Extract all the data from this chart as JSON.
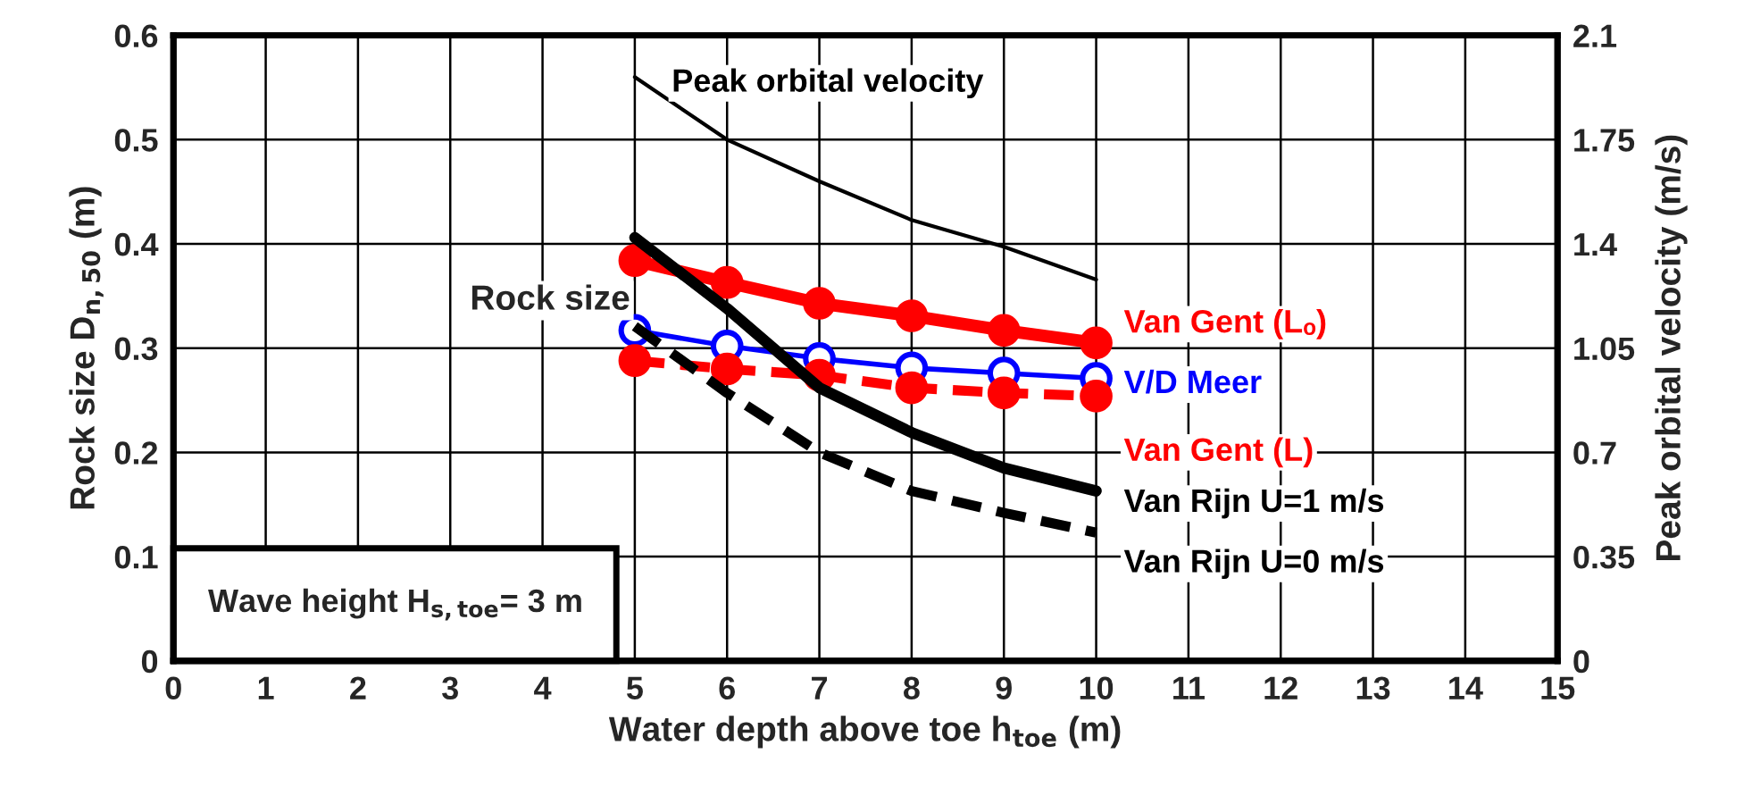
{
  "chart_data": {
    "type": "line",
    "xlabel": "Water depth above toe h$_{toe}$ (m)",
    "ylabel": "Rock size D$_{n,50}$ (m)",
    "y2label": "Peak orbital velocity (m/s)",
    "xlim": [
      0,
      15
    ],
    "xticks": [
      0,
      1,
      2,
      3,
      4,
      5,
      6,
      7,
      8,
      9,
      10,
      11,
      12,
      13,
      14,
      15
    ],
    "ylim": [
      0,
      0.6
    ],
    "yticks": [
      0,
      0.1,
      0.2,
      0.3,
      0.4,
      0.5,
      0.6
    ],
    "y2lim": [
      0,
      2.1
    ],
    "y2ticks": [
      0,
      0.35,
      0.7,
      1.05,
      1.4,
      1.75,
      2.1
    ],
    "grid": true,
    "legend": false,
    "x": [
      5,
      6,
      7,
      8,
      9,
      10
    ],
    "series": [
      {
        "name": "Peak orbital velocity",
        "color": "#000000",
        "axis": "y2",
        "marker": "none",
        "line_style": "solid",
        "values": [
          1.96,
          1.75,
          1.61,
          1.48,
          1.39,
          1.28
        ]
      },
      {
        "name": "Van Gent (Lₒ)",
        "color": "#ff0000",
        "marker": "circle",
        "line_style": "solid",
        "values": [
          0.384,
          0.363,
          0.343,
          0.331,
          0.317,
          0.305
        ]
      },
      {
        "name": "V/D Meer",
        "color": "#0000ff",
        "marker": "open circle",
        "line_style": "solid",
        "values": [
          0.317,
          0.302,
          0.29,
          0.281,
          0.276,
          0.271
        ]
      },
      {
        "name": "Van Gent (L)",
        "color": "#ff0000",
        "marker": "circle",
        "line_style": "dashed",
        "values": [
          0.288,
          0.28,
          0.274,
          0.262,
          0.257,
          0.254
        ]
      },
      {
        "name": "Van Rijn U=1 m/s",
        "color": "#000000",
        "marker": "none",
        "line_style": "solid",
        "values": [
          0.406,
          0.338,
          0.262,
          0.219,
          0.185,
          0.163
        ]
      },
      {
        "name": "Van Rijn U=0 m/s",
        "color": "#000000",
        "marker": "none",
        "line_style": "dashed",
        "values": [
          0.321,
          0.257,
          0.2,
          0.163,
          0.142,
          0.123
        ]
      }
    ],
    "annotations": [
      {
        "text": "Rock size",
        "x": 5,
        "y": 0.33
      },
      "Wave height H$_{s,toe}$= 3 m"
    ]
  }
}
